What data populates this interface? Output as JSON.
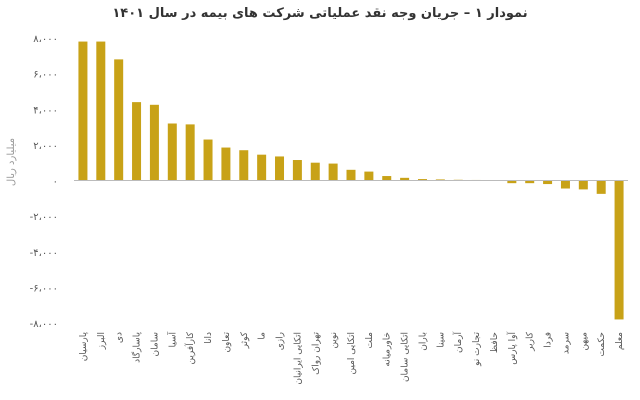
{
  "chart_data": {
    "type": "bar",
    "title": "نمودار ۱ – جریان وجه نقد عملیاتی شرکت های بیمه در سال ۱۴۰۱",
    "xlabel": "",
    "ylabel": "میلیارد ریال",
    "ylim": [
      -8000,
      8000
    ],
    "yticks": [
      8000,
      6000,
      4000,
      2000,
      0,
      -2000,
      -4000,
      -6000,
      -8000
    ],
    "ytick_labels": [
      "۸،۰۰۰",
      "۶،۰۰۰",
      "۴،۰۰۰",
      "۲،۰۰۰",
      "۰",
      "-۲،۰۰۰",
      "-۴،۰۰۰",
      "-۶،۰۰۰",
      "-۸،۰۰۰"
    ],
    "categories": [
      "پارسیان",
      "البرز",
      "دی",
      "پاسارگاد",
      "سامان",
      "آسیا",
      "کارآفرین",
      "دانا",
      "تعاون",
      "کوثر",
      "ما",
      "رازی",
      "اتکایی ایرانیان",
      "تهران رواک",
      "نوین",
      "اتکایی امین",
      "ملت",
      "خاورمیانه",
      "اتکایی سامان",
      "باران",
      "سینا",
      "آرمان",
      "تجارت نو",
      "حافظ",
      "آوا پارس",
      "کاربر",
      "فردا",
      "سرمد",
      "میهن",
      "حکمت",
      "معلم"
    ],
    "values": [
      7800,
      7800,
      6800,
      4400,
      4250,
      3200,
      3150,
      2300,
      1850,
      1700,
      1450,
      1350,
      1150,
      1000,
      950,
      600,
      500,
      250,
      150,
      80,
      60,
      40,
      30,
      10,
      -150,
      -150,
      -200,
      -450,
      -500,
      -750,
      -7800
    ],
    "bar_color": "#C8A217",
    "grid": false
  }
}
